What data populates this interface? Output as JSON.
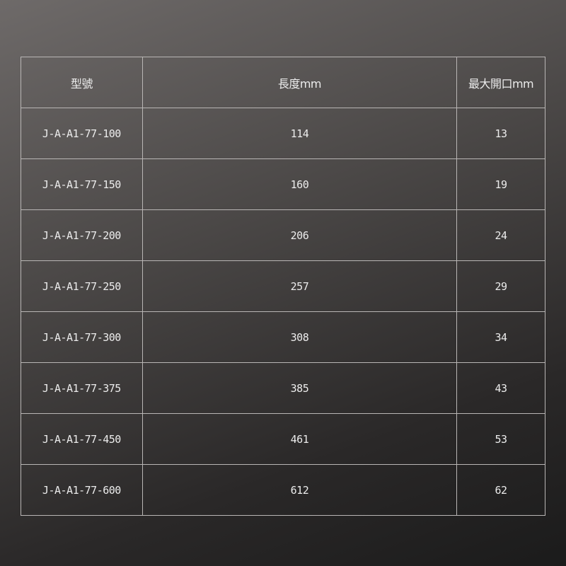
{
  "table": {
    "headers": [
      "型號",
      "長度mm",
      "最大開口mm"
    ],
    "rows": [
      [
        "J-A-A1-77-100",
        "114",
        "13"
      ],
      [
        "J-A-A1-77-150",
        "160",
        "19"
      ],
      [
        "J-A-A1-77-200",
        "206",
        "24"
      ],
      [
        "J-A-A1-77-250",
        "257",
        "29"
      ],
      [
        "J-A-A1-77-300",
        "308",
        "34"
      ],
      [
        "J-A-A1-77-375",
        "385",
        "43"
      ],
      [
        "J-A-A1-77-450",
        "461",
        "53"
      ],
      [
        "J-A-A1-77-600",
        "612",
        "62"
      ]
    ]
  }
}
